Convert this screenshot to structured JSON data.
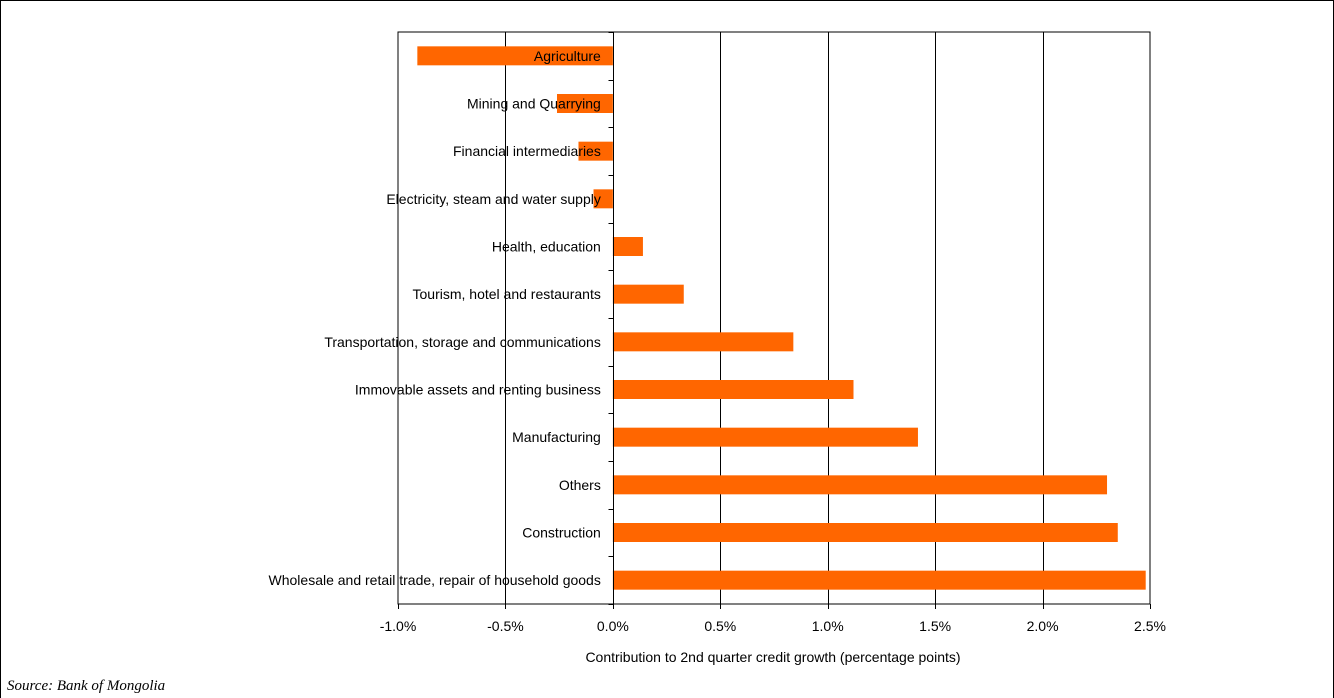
{
  "chart_data": {
    "type": "bar",
    "orientation": "horizontal",
    "categories": [
      "Agriculture",
      "Mining and Quarrying",
      "Financial intermediaries",
      "Electricity, steam and water supply",
      "Health, education",
      "Tourism, hotel and restaurants",
      "Transportation, storage and communications",
      "Immovable assets and renting business",
      "Manufacturing",
      "Others",
      "Construction",
      "Wholesale and retail trade, repair of household goods"
    ],
    "values": [
      -0.91,
      -0.26,
      -0.16,
      -0.09,
      0.14,
      0.33,
      0.84,
      1.12,
      1.42,
      2.3,
      2.35,
      2.48
    ],
    "xlabel": "Contribution to 2nd quarter credit growth (percentage points)",
    "ylabel": "",
    "xlim": [
      -1.0,
      2.5
    ],
    "xticks": [
      -1.0,
      -0.5,
      0.0,
      0.5,
      1.0,
      1.5,
      2.0,
      2.5
    ],
    "xtick_labels": [
      "-1.0%",
      "-0.5%",
      "0.0%",
      "0.5%",
      "1.0%",
      "1.5%",
      "2.0%",
      "2.5%"
    ],
    "grid": "vertical",
    "legend": "none",
    "bar_color": "#ff6600"
  },
  "source": "Source: Bank of Mongolia"
}
